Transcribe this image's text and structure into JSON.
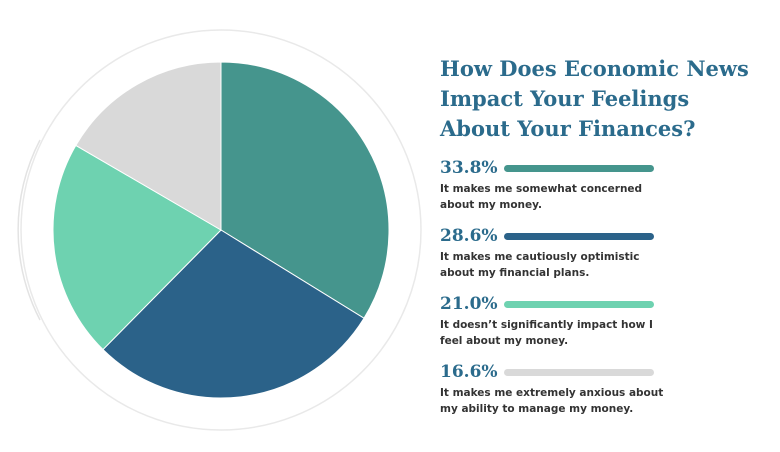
{
  "chart_data": {
    "type": "pie",
    "title": "How Does Economic News\nImpact Your Feelings\nAbout Your Finances?",
    "slices": [
      {
        "value": 33.8,
        "value_label": "33.8%",
        "label": "It makes me somewhat concerned about my money.",
        "color": "#45958d"
      },
      {
        "value": 28.6,
        "value_label": "28.6%",
        "label": "It makes me cautiously optimistic about my financial plans.",
        "color": "#2b6289"
      },
      {
        "value": 21.0,
        "value_label": "21.0%",
        "label": "It doesn’t significantly impact how I feel about my money.",
        "color": "#6ed2b0"
      },
      {
        "value": 16.6,
        "value_label": "16.6%",
        "label": "It makes me extremely anxious about my ability to manage my money.",
        "color": "#d9d9d9"
      }
    ]
  }
}
